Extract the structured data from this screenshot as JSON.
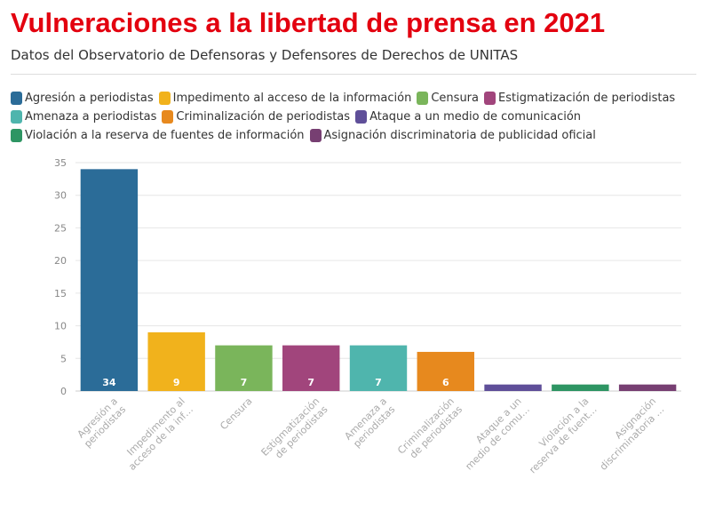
{
  "header": {
    "title": "Vulneraciones a la libertad de prensa en 2021",
    "subtitle": "Datos del Observatorio de Defensoras y Defensores de Derechos de UNITAS"
  },
  "legend": [
    {
      "label": "Agresión a periodistas",
      "color": "#2b6c98"
    },
    {
      "label": "Impedimento al acceso de la información",
      "color": "#f1b21c"
    },
    {
      "label": "Censura",
      "color": "#7ab55b"
    },
    {
      "label": "Estigmatización de periodistas",
      "color": "#a1457c"
    },
    {
      "label": "Amenaza a periodistas",
      "color": "#4fb5ad"
    },
    {
      "label": "Criminalización de periodistas",
      "color": "#e7891e"
    },
    {
      "label": "Ataque a un medio de comunicación",
      "color": "#5f4f99"
    },
    {
      "label": "Violación a la reserva de fuentes de información",
      "color": "#2e9563"
    },
    {
      "label": "Asignación discriminatoria de publicidad oficial",
      "color": "#773f72"
    }
  ],
  "chart_data": {
    "type": "bar",
    "categories": [
      "Agresión a periodistas",
      "Impedimento al acceso de la información",
      "Censura",
      "Estigmatización de periodistas",
      "Amenaza a periodistas",
      "Criminalización de periodistas",
      "Ataque a un medio de comunicación",
      "Violación a la reserva de fuentes de información",
      "Asignación discriminatoria de publicidad oficial"
    ],
    "tick_labels": [
      [
        "Agresión a",
        "periodistas"
      ],
      [
        "Impedimento al",
        "acceso de la inf…"
      ],
      [
        "Censura"
      ],
      [
        "Estigmatización",
        "de periodistas"
      ],
      [
        "Amenaza a",
        "periodistas"
      ],
      [
        "Criminalización",
        "de periodistas"
      ],
      [
        "Ataque a un",
        "medio de comu…"
      ],
      [
        "Violación a la",
        "reserva de fuent…"
      ],
      [
        "Asignación",
        "discriminatoria …"
      ]
    ],
    "values": [
      34,
      9,
      7,
      7,
      7,
      6,
      1,
      1,
      1
    ],
    "data_labels": [
      "34",
      "9",
      "7",
      "7",
      "7",
      "6",
      "",
      "",
      ""
    ],
    "colors": [
      "#2b6c98",
      "#f1b21c",
      "#7ab55b",
      "#a1457c",
      "#4fb5ad",
      "#e7891e",
      "#5f4f99",
      "#2e9563",
      "#773f72"
    ],
    "ylim": [
      0,
      35
    ],
    "yticks": [
      0,
      5,
      10,
      15,
      20,
      25,
      30,
      35
    ],
    "grid": true,
    "legend_position": "top"
  }
}
